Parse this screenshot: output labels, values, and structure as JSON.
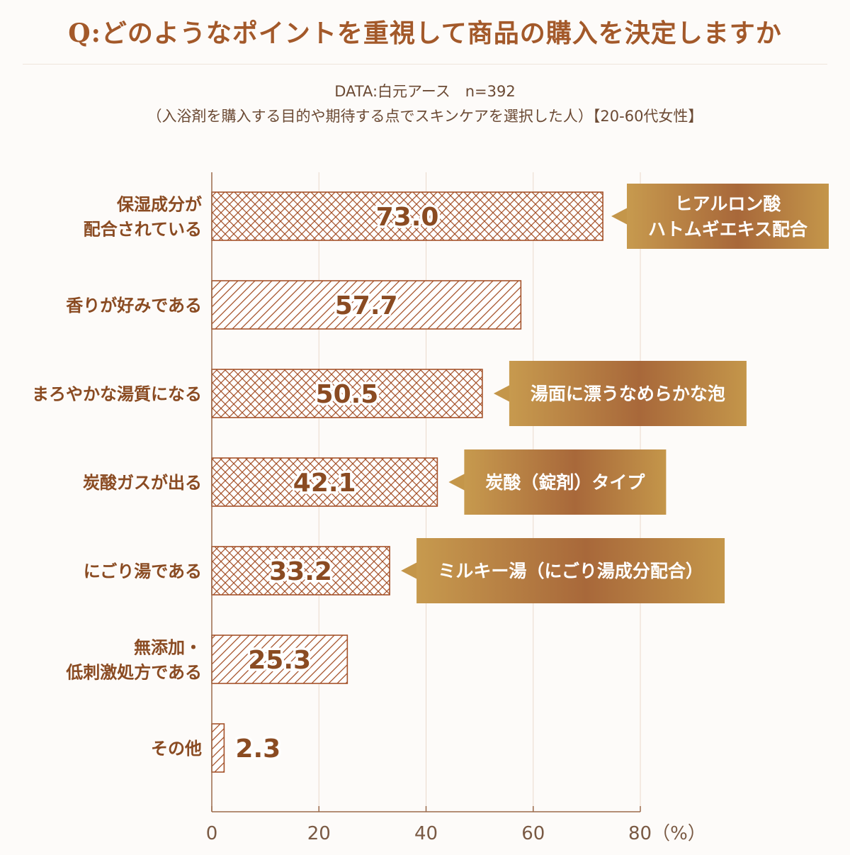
{
  "header": {
    "title": "Q:どのようなポイントを重視して商品の購入を決定しますか",
    "source_line": "DATA:白元アース　n=392",
    "population_line": "（入浴剤を購入する目的や期待する点でスキンケアを選択した人）【20-60代女性】"
  },
  "colors": {
    "accent": "#a3592a",
    "bar_stroke": "#a5522a",
    "label_text": "#8a4b22",
    "axis": "#9b6a4a",
    "callout_gold": "#c4964a",
    "callout_brown": "#9b5f35"
  },
  "chart_data": {
    "type": "bar",
    "orientation": "horizontal",
    "categories": [
      [
        "保湿成分が",
        "配合されている"
      ],
      [
        "香りが好みである"
      ],
      [
        "まろやかな湯質になる"
      ],
      [
        "炭酸ガスが出る"
      ],
      [
        "にごり湯である"
      ],
      [
        "無添加・",
        "低刺激処方である"
      ],
      [
        "その他"
      ]
    ],
    "values": [
      73.0,
      57.7,
      50.5,
      42.1,
      33.2,
      25.3,
      2.3
    ],
    "value_labels": [
      "73.0",
      "57.7",
      "50.5",
      "42.1",
      "33.2",
      "25.3",
      "2.3"
    ],
    "patterns": [
      "crosshatch",
      "diagonal",
      "crosshatch",
      "crosshatch",
      "crosshatch",
      "diagonal",
      "diagonal"
    ],
    "xlim": [
      0,
      80
    ],
    "xticks": [
      0,
      20,
      40,
      60,
      80
    ],
    "xtick_labels": [
      "0",
      "20",
      "40",
      "60",
      "80（%）"
    ],
    "grid": true,
    "callouts": [
      {
        "bar": 0,
        "lines": [
          "ヒアルロン酸",
          "ハトムギエキス配合"
        ]
      },
      {
        "bar": 2,
        "lines": [
          "湯面に漂うなめらかな泡"
        ]
      },
      {
        "bar": 3,
        "lines": [
          "炭酸（錠剤）タイプ"
        ]
      },
      {
        "bar": 4,
        "lines": [
          "ミルキー湯（にごり湯成分配合）"
        ]
      }
    ]
  }
}
